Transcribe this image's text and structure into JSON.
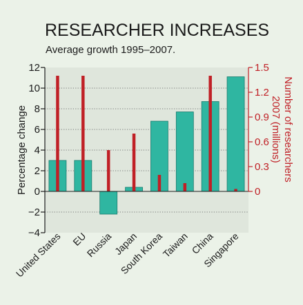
{
  "chart_data": {
    "type": "bar",
    "title": "RESEARCHER INCREASES",
    "subtitle": "Average growth 1995–2007.",
    "categories": [
      "United States",
      "EU",
      "Russia",
      "Japan",
      "South Korea",
      "Taiwan",
      "China",
      "Singapore"
    ],
    "series": [
      {
        "axis": "left",
        "color": "#2fb6a1",
        "values": [
          3.0,
          3.0,
          -2.2,
          0.4,
          6.8,
          7.7,
          8.7,
          11.1
        ]
      },
      {
        "axis": "right",
        "color": "#c02026",
        "values": [
          1.4,
          1.4,
          0.5,
          0.7,
          0.2,
          0.1,
          1.4,
          0.03
        ]
      }
    ],
    "ylabel": "Percentage change",
    "y2label_line1": "Number of researchers",
    "y2label_line2": "2007 (millions)",
    "ylim": [
      -4,
      12
    ],
    "y2lim": [
      0,
      1.5
    ],
    "yticks": [
      "12",
      "10",
      "8",
      "6",
      "4",
      "2",
      "0",
      "−2",
      "−4"
    ],
    "y2ticks": [
      "1.5",
      "1.2",
      "0.9",
      "0.6",
      "0.3",
      "0"
    ],
    "grid": true,
    "colors": {
      "background": "#ebf2e8",
      "plot": "#dfe6dc",
      "bar": "#2fb6a1",
      "bar_edge": "#1b7c6e",
      "needle": "#c02026",
      "right_axis": "#c02026"
    }
  }
}
